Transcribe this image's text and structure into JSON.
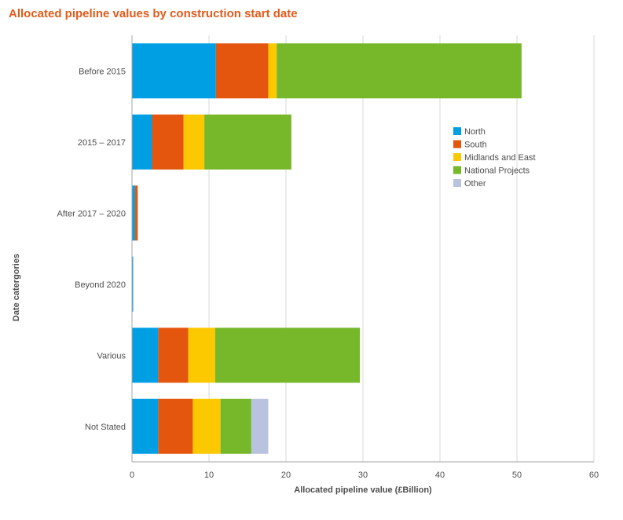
{
  "chart_data": {
    "type": "bar",
    "orientation": "horizontal",
    "stacked": true,
    "title": "Allocated pipeline values by construction start date",
    "xlabel": "Allocated pipeline value (£Billion)",
    "ylabel": "Date catergories",
    "xlim": [
      0,
      60
    ],
    "xticks": [
      "0",
      "10",
      "20",
      "30",
      "40",
      "50",
      "60"
    ],
    "categories": [
      "Before 2015",
      "2015 – 2017",
      "After 2017 – 2020",
      "Beyond 2020",
      "Various",
      "Not Stated"
    ],
    "series": [
      {
        "name": "North",
        "color": "#009fe3",
        "values": [
          10.9,
          2.6,
          0.4,
          0.15,
          3.4,
          3.4
        ]
      },
      {
        "name": "South",
        "color": "#e4560e",
        "values": [
          6.8,
          4.1,
          0.35,
          0,
          3.9,
          4.5
        ]
      },
      {
        "name": "Midlands and East",
        "color": "#fcc800",
        "values": [
          1.1,
          2.7,
          0,
          0,
          3.5,
          3.6
        ]
      },
      {
        "name": "National Projects",
        "color": "#76b82a",
        "values": [
          31.8,
          11.3,
          0,
          0,
          18.8,
          4.0
        ]
      },
      {
        "name": "Other",
        "color": "#b9c3df",
        "values": [
          0,
          0,
          0,
          0,
          0,
          2.2
        ]
      }
    ],
    "grid": true,
    "legend_position": "right-upper"
  }
}
